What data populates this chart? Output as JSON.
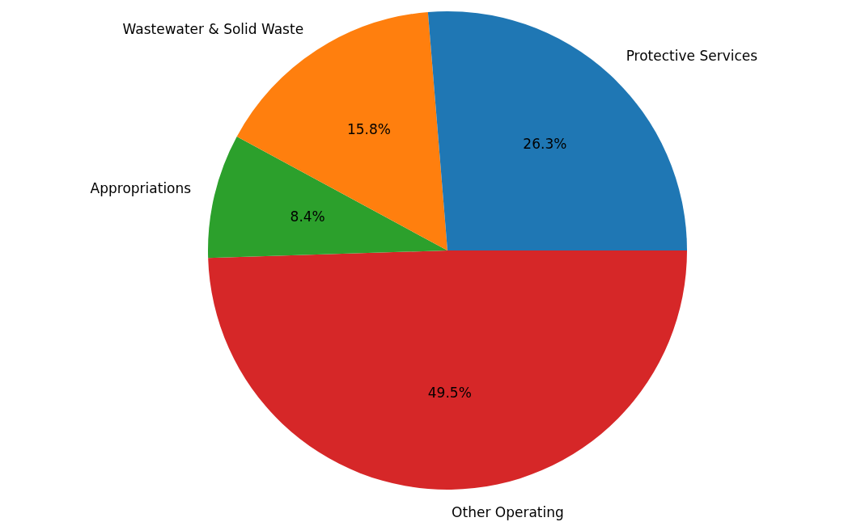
{
  "chart_data": {
    "type": "pie",
    "categories": [
      "Other Operating",
      "Appropriations",
      "Wastewater & Solid Waste",
      "Protective Services"
    ],
    "values": [
      49.5,
      8.4,
      15.8,
      26.3
    ],
    "colors": [
      "#d62728",
      "#2ca02c",
      "#ff7f0e",
      "#1f77b4"
    ],
    "value_labels": [
      "49.5%",
      "8.4%",
      "15.8%",
      "26.3%"
    ],
    "legend": false
  }
}
